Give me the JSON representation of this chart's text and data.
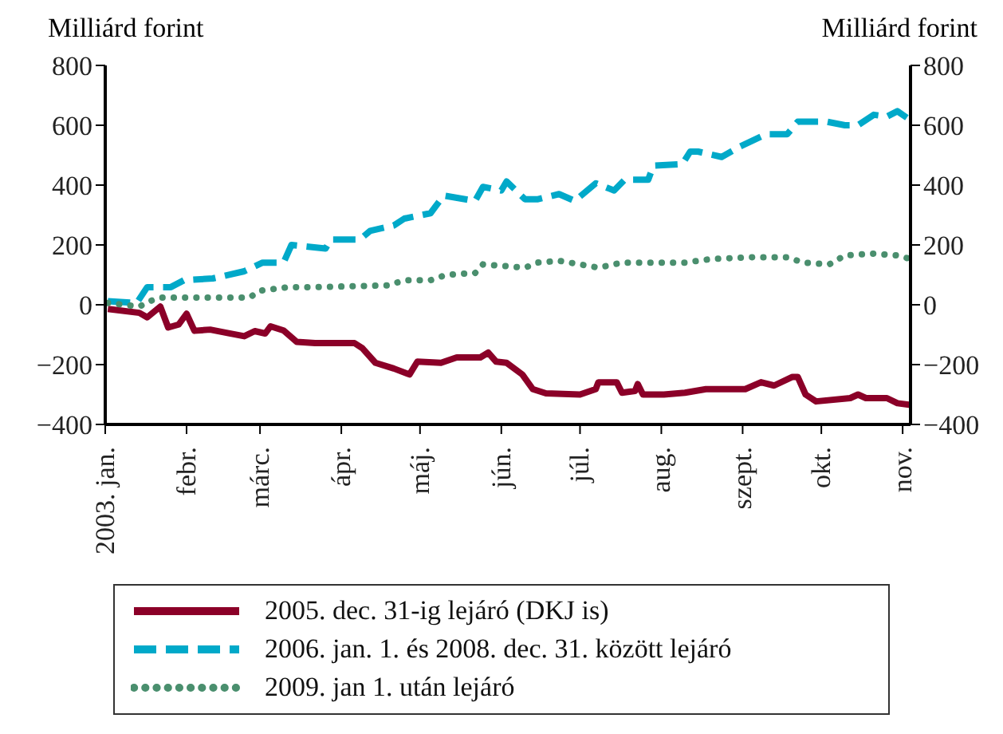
{
  "chart_data": {
    "type": "line",
    "ylabel": "Milliárd forint",
    "y2label": "Milliárd forint",
    "xlim": [
      "2003-01-01",
      "2003-11-04"
    ],
    "xticks": [
      {
        "value": "2003-01-01",
        "label": "2003. jan."
      },
      {
        "value": "2003-02-01",
        "label": "febr."
      },
      {
        "value": "2003-03-01",
        "label": "márc."
      },
      {
        "value": "2003-04-01",
        "label": "ápr."
      },
      {
        "value": "2003-05-01",
        "label": "máj."
      },
      {
        "value": "2003-06-01",
        "label": "jún."
      },
      {
        "value": "2003-07-01",
        "label": "júl."
      },
      {
        "value": "2003-08-01",
        "label": "aug."
      },
      {
        "value": "2003-09-01",
        "label": "szept."
      },
      {
        "value": "2003-10-01",
        "label": "okt."
      },
      {
        "value": "2003-11-01",
        "label": "nov."
      }
    ],
    "ylim": [
      -400,
      800
    ],
    "yticks": [
      {
        "value": -400,
        "label": "−400"
      },
      {
        "value": -200,
        "label": "−200"
      },
      0,
      200,
      400,
      600,
      800
    ],
    "y2lim": [
      -400,
      800
    ],
    "y2ticks": [
      {
        "value": -400,
        "label": "−400"
      },
      {
        "value": -200,
        "label": "−200"
      },
      0,
      200,
      400,
      600,
      800
    ],
    "grid": false,
    "legend": "bottom",
    "marker": "none",
    "series": [
      {
        "name": "2005. dec. 31-ig lejáró (DKJ is)",
        "color": "#8b0028",
        "line_style": "solid",
        "x": [
          "2003-01-02",
          "2003-01-14",
          "2003-01-17",
          "2003-01-22",
          "2003-01-25",
          "2003-01-29",
          "2003-02-01",
          "2003-02-04",
          "2003-02-10",
          "2003-02-17",
          "2003-02-23",
          "2003-02-27",
          "2003-03-03",
          "2003-03-05",
          "2003-03-10",
          "2003-03-15",
          "2003-03-22",
          "2003-04-06",
          "2003-04-09",
          "2003-04-14",
          "2003-04-21",
          "2003-04-27",
          "2003-04-30",
          "2003-05-09",
          "2003-05-15",
          "2003-05-24",
          "2003-05-27",
          "2003-05-30",
          "2003-06-03",
          "2003-06-09",
          "2003-06-13",
          "2003-06-18",
          "2003-07-01",
          "2003-07-07",
          "2003-07-08",
          "2003-07-15",
          "2003-07-17",
          "2003-07-22",
          "2003-07-23",
          "2003-07-25",
          "2003-08-02",
          "2003-08-10",
          "2003-08-18",
          "2003-09-02",
          "2003-09-08",
          "2003-09-13",
          "2003-09-20",
          "2003-09-22",
          "2003-09-25",
          "2003-09-29",
          "2003-10-12",
          "2003-10-15",
          "2003-10-18",
          "2003-10-26",
          "2003-10-30",
          "2003-11-04"
        ],
        "values": [
          -14,
          -27,
          -42,
          -6,
          -76,
          -66,
          -30,
          -87,
          -83,
          -95,
          -105,
          -88,
          -96,
          -72,
          -86,
          -124,
          -128,
          -128,
          -145,
          -194,
          -213,
          -233,
          -190,
          -194,
          -176,
          -176,
          -160,
          -190,
          -194,
          -233,
          -282,
          -296,
          -300,
          -282,
          -259,
          -259,
          -294,
          -288,
          -265,
          -300,
          -300,
          -294,
          -282,
          -282,
          -259,
          -270,
          -241,
          -241,
          -300,
          -323,
          -312,
          -300,
          -312,
          -312,
          -329,
          -335
        ]
      },
      {
        "name": "2006. jan. 1. és 2008. dec. 31. között lejáró",
        "color": "#00a9c9",
        "line_style": "dashed",
        "x": [
          "2003-01-02",
          "2003-01-13",
          "2003-01-17",
          "2003-01-26",
          "2003-01-31",
          "2003-02-11",
          "2003-02-23",
          "2003-03-02",
          "2003-03-10",
          "2003-03-13",
          "2003-03-26",
          "2003-03-28",
          "2003-04-08",
          "2003-04-12",
          "2003-04-21",
          "2003-04-25",
          "2003-05-05",
          "2003-05-10",
          "2003-05-22",
          "2003-05-25",
          "2003-06-01",
          "2003-06-03",
          "2003-06-10",
          "2003-06-15",
          "2003-06-23",
          "2003-06-29",
          "2003-07-07",
          "2003-07-14",
          "2003-07-18",
          "2003-07-27",
          "2003-07-29",
          "2003-08-09",
          "2003-08-12",
          "2003-08-15",
          "2003-08-24",
          "2003-08-31",
          "2003-09-10",
          "2003-09-18",
          "2003-09-22",
          "2003-10-03",
          "2003-10-10",
          "2003-10-15",
          "2003-10-21",
          "2003-10-26",
          "2003-10-30",
          "2003-11-04"
        ],
        "values": [
          12,
          6,
          59,
          59,
          82,
          88,
          112,
          141,
          141,
          200,
          188,
          218,
          218,
          247,
          265,
          288,
          306,
          365,
          347,
          394,
          382,
          412,
          353,
          353,
          370,
          347,
          406,
          382,
          418,
          418,
          465,
          470,
          512,
          512,
          494,
          529,
          570,
          570,
          612,
          612,
          600,
          600,
          635,
          629,
          647,
          617
        ]
      },
      {
        "name": "2009. jan 1. után lejáró",
        "color": "#4a8f6e",
        "line_style": "dotted",
        "x": [
          "2003-01-02",
          "2003-01-14",
          "2003-01-18",
          "2003-01-22",
          "2003-02-25",
          "2003-03-01",
          "2003-03-12",
          "2003-03-22",
          "2003-04-19",
          "2003-04-25",
          "2003-05-05",
          "2003-05-11",
          "2003-05-22",
          "2003-05-25",
          "2003-06-03",
          "2003-06-10",
          "2003-06-15",
          "2003-06-23",
          "2003-07-01",
          "2003-07-08",
          "2003-07-17",
          "2003-07-29",
          "2003-08-10",
          "2003-08-20",
          "2003-09-05",
          "2003-09-18",
          "2003-09-24",
          "2003-10-04",
          "2003-10-10",
          "2003-10-21",
          "2003-10-30",
          "2003-11-04"
        ],
        "values": [
          6,
          -6,
          12,
          24,
          24,
          47,
          59,
          59,
          65,
          82,
          82,
          100,
          106,
          135,
          129,
          124,
          141,
          147,
          135,
          124,
          141,
          141,
          141,
          153,
          159,
          159,
          141,
          135,
          165,
          171,
          165,
          153
        ]
      }
    ]
  }
}
